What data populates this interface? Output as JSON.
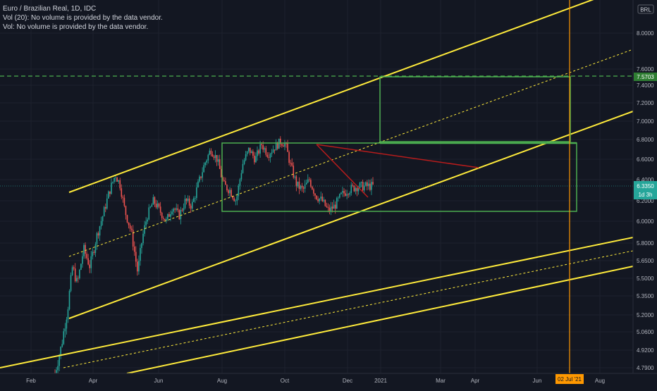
{
  "legend": {
    "title": "Euro / Brazilian Real, 1D, IDC",
    "vol20": "Vol (20): No volume is provided by the data vendor.",
    "vol": "Vol: No volume is provided by the data vendor."
  },
  "currency_badge": "BRL",
  "price_tag": {
    "value": "6.3350",
    "countdown": "1d 3h"
  },
  "level_tag": "7.5703",
  "date_tag": "02 Jul '21",
  "chart_data": {
    "type": "candlestick",
    "title": "Euro / Brazilian Real, 1D, IDC",
    "y_ticks": [
      "8.0000",
      "7.6000",
      "7.4000",
      "7.2000",
      "7.0000",
      "6.8000",
      "6.6000",
      "6.4000",
      "6.2000",
      "6.0000",
      "5.8000",
      "5.6500",
      "5.5000",
      "5.3500",
      "5.2000",
      "5.0600",
      "4.9200",
      "4.7900"
    ],
    "x_ticks": [
      "Feb",
      "Apr",
      "Jun",
      "Aug",
      "Oct",
      "Dec",
      "2021",
      "Mar",
      "Apr",
      "Jun",
      "Aug"
    ],
    "last_price": 6.335,
    "horizontal_level": 7.5703,
    "vertical_marker_date": "02 Jul '21",
    "colors": {
      "background": "#131722",
      "up": "#26a69a",
      "down": "#ef5350",
      "channel": "#ffeb3b",
      "box": "#4caf50",
      "drawing": "#b71c1c",
      "marker": "#ff9800",
      "price_line": "#26a69a"
    },
    "price_path": [
      [
        0.0,
        4.75
      ],
      [
        0.02,
        4.95
      ],
      [
        0.04,
        5.25
      ],
      [
        0.055,
        5.6
      ],
      [
        0.07,
        5.45
      ],
      [
        0.09,
        5.75
      ],
      [
        0.11,
        5.6
      ],
      [
        0.13,
        5.85
      ],
      [
        0.15,
        6.05
      ],
      [
        0.17,
        6.28
      ],
      [
        0.19,
        6.45
      ],
      [
        0.205,
        6.35
      ],
      [
        0.22,
        6.1
      ],
      [
        0.24,
        5.9
      ],
      [
        0.26,
        5.55
      ],
      [
        0.275,
        5.85
      ],
      [
        0.29,
        6.05
      ],
      [
        0.31,
        6.2
      ],
      [
        0.33,
        6.1
      ],
      [
        0.35,
        6.0
      ],
      [
        0.37,
        6.15
      ],
      [
        0.39,
        6.05
      ],
      [
        0.41,
        6.2
      ],
      [
        0.43,
        6.15
      ],
      [
        0.45,
        6.35
      ],
      [
        0.47,
        6.55
      ],
      [
        0.49,
        6.7
      ],
      [
        0.51,
        6.6
      ],
      [
        0.53,
        6.35
      ],
      [
        0.55,
        6.3
      ],
      [
        0.57,
        6.2
      ],
      [
        0.59,
        6.55
      ],
      [
        0.61,
        6.7
      ],
      [
        0.63,
        6.6
      ],
      [
        0.65,
        6.75
      ],
      [
        0.67,
        6.65
      ],
      [
        0.69,
        6.72
      ],
      [
        0.71,
        6.78
      ],
      [
        0.725,
        6.75
      ],
      [
        0.74,
        6.55
      ],
      [
        0.76,
        6.35
      ],
      [
        0.78,
        6.3
      ],
      [
        0.8,
        6.4
      ],
      [
        0.82,
        6.25
      ],
      [
        0.84,
        6.2
      ],
      [
        0.86,
        6.1
      ],
      [
        0.88,
        6.15
      ],
      [
        0.9,
        6.25
      ],
      [
        0.92,
        6.3
      ],
      [
        0.95,
        6.335
      ],
      [
        1.0,
        6.34
      ]
    ]
  }
}
